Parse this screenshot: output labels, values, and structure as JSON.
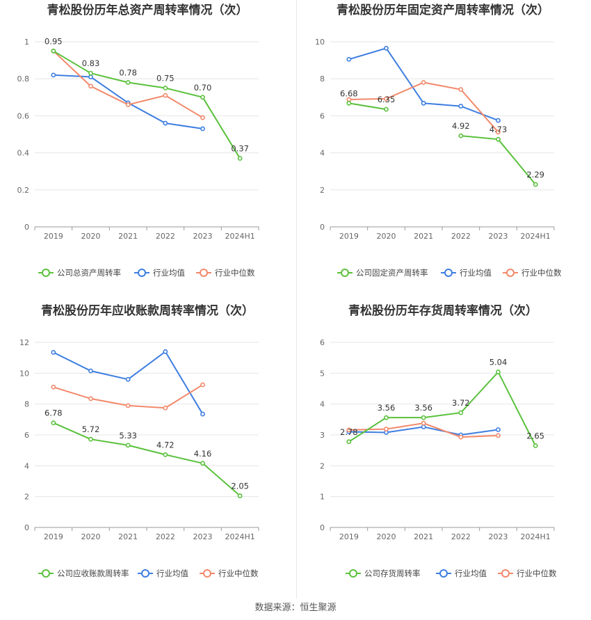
{
  "footer": "数据来源：恒生聚源",
  "colors": {
    "company": "#5ac13c",
    "avg": "#3d7ee0",
    "median": "#f2886a",
    "grid": "#e6e6e6",
    "axis": "#999999"
  },
  "chart_data": [
    {
      "type": "line",
      "title": "青松股份历年总资产周转率情况（次）",
      "categories": [
        "2019",
        "2020",
        "2021",
        "2022",
        "2023",
        "2024H1"
      ],
      "ylim": [
        0,
        1
      ],
      "yticks": [
        0,
        0.2,
        0.4,
        0.6,
        0.8,
        1
      ],
      "ytick_labels": [
        "0",
        "0.2",
        "0.4",
        "0.6",
        "0.8",
        "1"
      ],
      "legend_position": "bottom",
      "series": [
        {
          "name": "公司总资产周转率",
          "values": [
            0.95,
            0.83,
            0.78,
            0.75,
            0.7,
            0.37
          ],
          "labels": [
            "0.95",
            "0.83",
            "0.78",
            "0.75",
            "0.70",
            "0.37"
          ]
        },
        {
          "name": "行业均值",
          "values": [
            0.82,
            0.81,
            0.67,
            0.56,
            0.53,
            null
          ]
        },
        {
          "name": "行业中位数",
          "values": [
            0.95,
            0.76,
            0.66,
            0.71,
            0.59,
            null
          ]
        }
      ]
    },
    {
      "type": "line",
      "title": "青松股份历年固定资产周转率情况（次）",
      "categories": [
        "2019",
        "2020",
        "2021",
        "2022",
        "2023",
        "2024H1"
      ],
      "ylim": [
        0,
        10
      ],
      "yticks": [
        0,
        2,
        4,
        6,
        8,
        10
      ],
      "ytick_labels": [
        "0",
        "2",
        "4",
        "6",
        "8",
        "10"
      ],
      "legend_position": "bottom",
      "series": [
        {
          "name": "公司固定资产周转率",
          "values": [
            6.68,
            6.35,
            null,
            4.92,
            4.73,
            2.29
          ],
          "labels": [
            "6.68",
            "6.35",
            "",
            "4.92",
            "4.73",
            "2.29"
          ]
        },
        {
          "name": "行业均值",
          "values": [
            9.05,
            9.65,
            6.68,
            6.52,
            5.75,
            null
          ]
        },
        {
          "name": "行业中位数",
          "values": [
            6.88,
            6.92,
            7.8,
            7.42,
            5.12,
            null
          ]
        }
      ]
    },
    {
      "type": "line",
      "title": "青松股份历年应收账款周转率情况（次）",
      "categories": [
        "2019",
        "2020",
        "2021",
        "2022",
        "2023",
        "2024H1"
      ],
      "ylim": [
        0,
        12
      ],
      "yticks": [
        0,
        2,
        4,
        6,
        8,
        10,
        12
      ],
      "ytick_labels": [
        "0",
        "2",
        "4",
        "6",
        "8",
        "10",
        "12"
      ],
      "legend_position": "bottom",
      "series": [
        {
          "name": "公司应收账款周转率",
          "values": [
            6.78,
            5.72,
            5.33,
            4.72,
            4.16,
            2.05
          ],
          "labels": [
            "6.78",
            "5.72",
            "5.33",
            "4.72",
            "4.16",
            "2.05"
          ]
        },
        {
          "name": "行业均值",
          "values": [
            11.35,
            10.15,
            9.6,
            11.4,
            7.35,
            null
          ]
        },
        {
          "name": "行业中位数",
          "values": [
            9.1,
            8.35,
            7.9,
            7.75,
            9.25,
            null
          ]
        }
      ]
    },
    {
      "type": "line",
      "title": "青松股份历年存货周转率情况（次）",
      "categories": [
        "2019",
        "2020",
        "2021",
        "2022",
        "2023",
        "2024H1"
      ],
      "ylim": [
        0,
        6
      ],
      "yticks": [
        0,
        1,
        2,
        3,
        4,
        5,
        6
      ],
      "ytick_labels": [
        "0",
        "1",
        "2",
        "3",
        "4",
        "5",
        "6"
      ],
      "legend_position": "bottom",
      "series": [
        {
          "name": "公司存货周转率",
          "values": [
            2.78,
            3.56,
            3.56,
            3.72,
            5.04,
            2.65
          ],
          "labels": [
            "2.78",
            "3.56",
            "3.56",
            "3.72",
            "5.04",
            "2.65"
          ]
        },
        {
          "name": "行业均值",
          "values": [
            3.1,
            3.08,
            3.26,
            3.0,
            3.17,
            null
          ]
        },
        {
          "name": "行业中位数",
          "values": [
            3.16,
            3.19,
            3.38,
            2.93,
            2.98,
            null
          ]
        }
      ]
    }
  ]
}
